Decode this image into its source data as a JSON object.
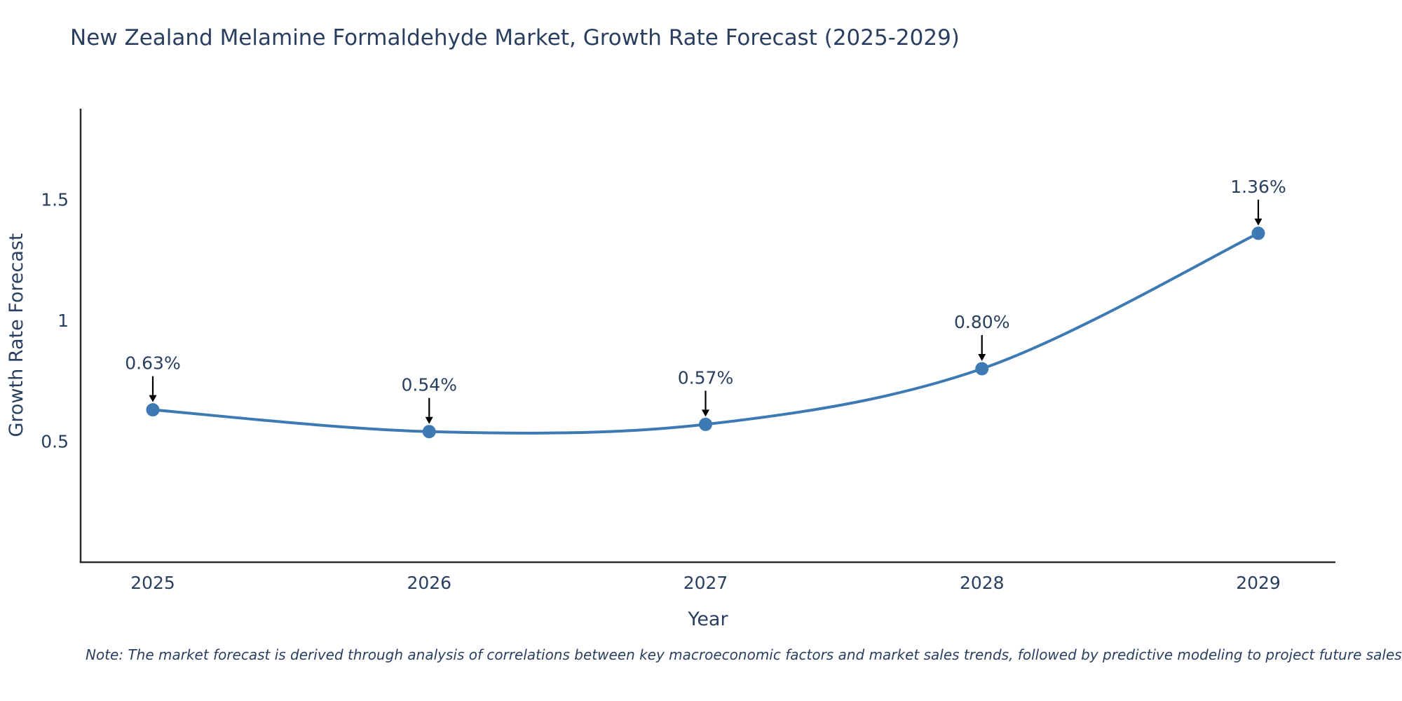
{
  "title": "New Zealand Melamine Formaldehyde Market, Growth Rate Forecast (2025-2029)",
  "note": "Note: The market forecast is derived through analysis of correlations between key macroeconomic factors and market sales trends, followed by predictive modeling to project future sales",
  "colors": {
    "line": "#3d79b2",
    "marker": "#3d79b2",
    "title": "#2a3f5f",
    "axis": "#2a2a2a",
    "tick_text": "#2a3f5f",
    "annotation_arrow": "#000000"
  },
  "chart_data": {
    "type": "line",
    "line_shape": "spline",
    "title": "New Zealand Melamine Formaldehyde Market, Growth Rate Forecast (2025-2029)",
    "xlabel": "Year",
    "ylabel": "Growth Rate Forecast",
    "x": [
      2025,
      2026,
      2027,
      2028,
      2029
    ],
    "values": [
      0.63,
      0.54,
      0.57,
      0.8,
      1.36
    ],
    "point_labels": [
      "0.63%",
      "0.54%",
      "0.57%",
      "0.80%",
      "1.36%"
    ],
    "yticks": [
      0.5,
      1,
      1.5
    ],
    "ylim": [
      0,
      1.9
    ],
    "grid": false,
    "legend": "none",
    "markers": true,
    "annotations": "value labels with down arrows above each point"
  }
}
